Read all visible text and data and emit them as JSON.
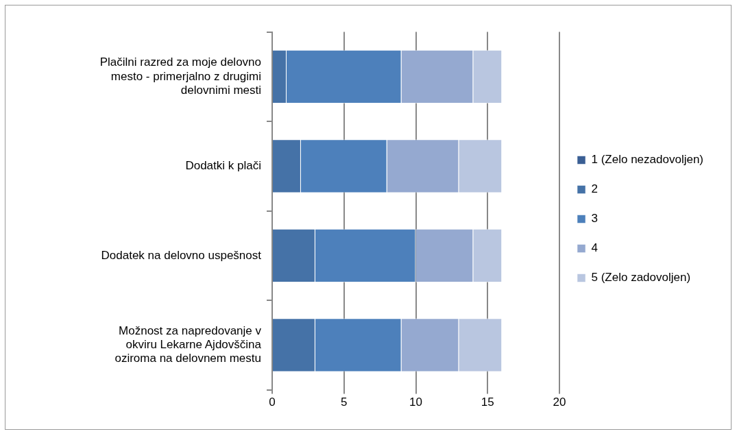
{
  "chart_data": {
    "type": "bar",
    "orientation": "horizontal",
    "stacked": true,
    "categories": [
      "Plačilni razred za moje delovno mesto - primerjalno z drugimi delovnimi mesti",
      "Dodatki k plači",
      "Dodatek na delovno uspešnost",
      "Možnost za napredovanje v okviru Lekarne Ajdovščina oziroma na delovnem mestu"
    ],
    "series": [
      {
        "name": "1 (Zelo nezadovoljen)",
        "color": "#3a5f94",
        "values": [
          0,
          0,
          0,
          0
        ]
      },
      {
        "name": "2",
        "color": "#4572a7",
        "values": [
          1,
          2,
          3,
          3
        ]
      },
      {
        "name": "3",
        "color": "#4d80bb",
        "values": [
          8,
          6,
          7,
          6
        ]
      },
      {
        "name": "4",
        "color": "#95a9d0",
        "values": [
          5,
          5,
          4,
          4
        ]
      },
      {
        "name": "5 (Zelo zadovoljen)",
        "color": "#b9c6e0",
        "values": [
          2,
          3,
          2,
          3
        ]
      }
    ],
    "xlim": [
      0,
      20
    ],
    "xticks": [
      0,
      5,
      10,
      15,
      20
    ],
    "grid": "x",
    "legend": "right"
  }
}
